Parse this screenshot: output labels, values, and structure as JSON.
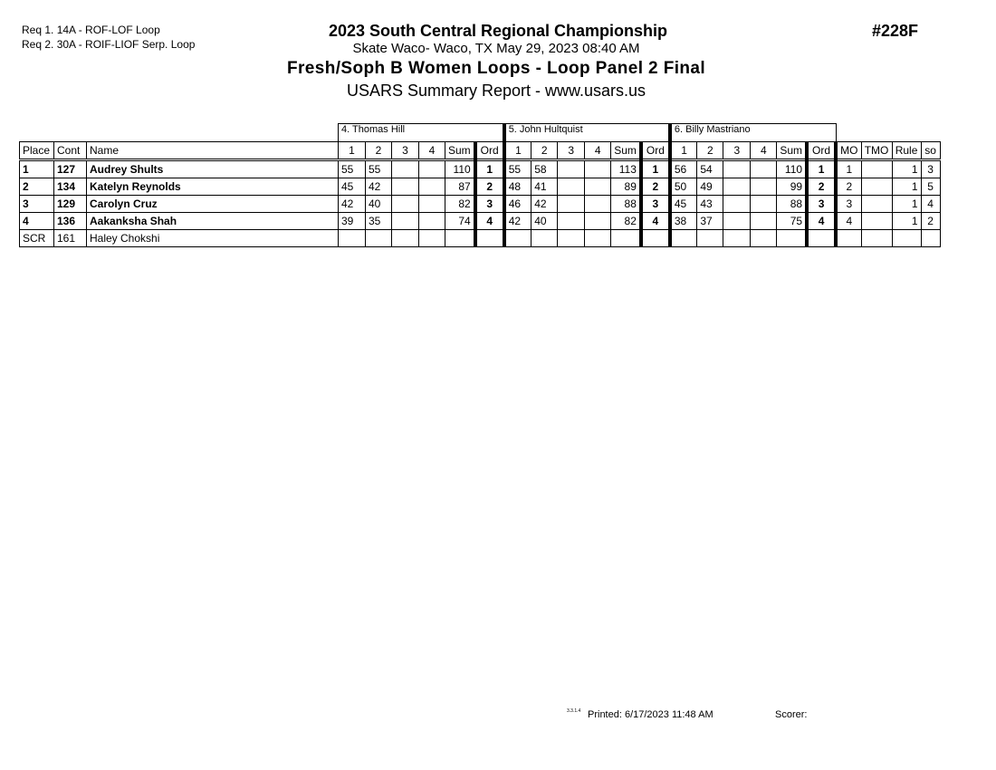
{
  "requirements": [
    "Req  1.  14A - ROF-LOF Loop",
    "Req  2.  30A - ROIF-LIOF Serp. Loop"
  ],
  "header": {
    "championship": "2023 South Central Regional Championship",
    "venue": "Skate Waco- Waco, TX  May 29, 2023  08:40 AM",
    "event": "Fresh/Soph B Women Loops - Loop Panel 2 Final",
    "report": "USARS Summary Report - www.usars.us",
    "event_number": "#228F"
  },
  "judges": [
    "4.  Thomas Hill",
    "5.  John Hultquist",
    "6.  Billy Mastriano"
  ],
  "columns": {
    "place": "Place",
    "cont": "Cont",
    "name": "Name",
    "judge_cols": [
      "1",
      "2",
      "3",
      "4",
      "Sum",
      "Ord"
    ],
    "mo": "MO",
    "tmo": "TMO",
    "rule": "Rule",
    "so": "so"
  },
  "rows": [
    {
      "place": "1",
      "cont": "127",
      "name": "Audrey Shults",
      "bold": true,
      "judges": [
        [
          "55",
          "55",
          "",
          "",
          "110",
          "1"
        ],
        [
          "55",
          "58",
          "",
          "",
          "113",
          "1"
        ],
        [
          "56",
          "54",
          "",
          "",
          "110",
          "1"
        ]
      ],
      "mo": "1",
      "tmo": "",
      "rule": "1",
      "so": "3"
    },
    {
      "place": "2",
      "cont": "134",
      "name": "Katelyn Reynolds",
      "bold": true,
      "judges": [
        [
          "45",
          "42",
          "",
          "",
          "87",
          "2"
        ],
        [
          "48",
          "41",
          "",
          "",
          "89",
          "2"
        ],
        [
          "50",
          "49",
          "",
          "",
          "99",
          "2"
        ]
      ],
      "mo": "2",
      "tmo": "",
      "rule": "1",
      "so": "5"
    },
    {
      "place": "3",
      "cont": "129",
      "name": "Carolyn Cruz",
      "bold": true,
      "judges": [
        [
          "42",
          "40",
          "",
          "",
          "82",
          "3"
        ],
        [
          "46",
          "42",
          "",
          "",
          "88",
          "3"
        ],
        [
          "45",
          "43",
          "",
          "",
          "88",
          "3"
        ]
      ],
      "mo": "3",
      "tmo": "",
      "rule": "1",
      "so": "4"
    },
    {
      "place": "4",
      "cont": "136",
      "name": "Aakanksha Shah",
      "bold": true,
      "judges": [
        [
          "39",
          "35",
          "",
          "",
          "74",
          "4"
        ],
        [
          "42",
          "40",
          "",
          "",
          "82",
          "4"
        ],
        [
          "38",
          "37",
          "",
          "",
          "75",
          "4"
        ]
      ],
      "mo": "4",
      "tmo": "",
      "rule": "1",
      "so": "2"
    },
    {
      "place": "SCR",
      "cont": "161",
      "name": "Haley Chokshi",
      "bold": false,
      "judges": [
        [
          "",
          "",
          "",
          "",
          "",
          ""
        ],
        [
          "",
          "",
          "",
          "",
          "",
          ""
        ],
        [
          "",
          "",
          "",
          "",
          "",
          ""
        ]
      ],
      "mo": "",
      "tmo": "",
      "rule": "",
      "so": ""
    }
  ],
  "footer": {
    "version": "3.3.1.4",
    "printed": "Printed:  6/17/2023  11:48 AM",
    "scorer": "Scorer:"
  }
}
